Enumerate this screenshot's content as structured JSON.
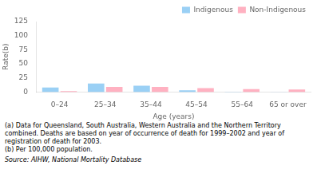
{
  "chart_data": {
    "type": "bar",
    "categories": [
      "0–24",
      "25–34",
      "35–44",
      "45–54",
      "55–64",
      "65 or over"
    ],
    "series": [
      {
        "name": "Indigenous",
        "values": [
          8.0,
          15.0,
          11.0,
          3.0,
          0.5,
          0.3
        ]
      },
      {
        "name": "Non-Indigenous",
        "values": [
          1.5,
          9.0,
          9.0,
          7.0,
          5.0,
          4.5
        ]
      }
    ],
    "x_label": "Age (years)",
    "y_label": "Rate(b)",
    "ylim": [
      0,
      125
    ],
    "yticks": [
      0,
      25,
      50,
      75,
      100,
      125
    ],
    "grid": false,
    "legend": "upper right",
    "annotations": [
      "(a) Data for Queensland, South Australia, Western Australia and the Northern Territory",
      "combined. Deaths are based on year of occurrence of death for 1999–2002 and year of",
      "registration of death for 2003.",
      "(b) Per 100,000 population.",
      "Source: AIHW, National Mortality Database"
    ]
  }
}
